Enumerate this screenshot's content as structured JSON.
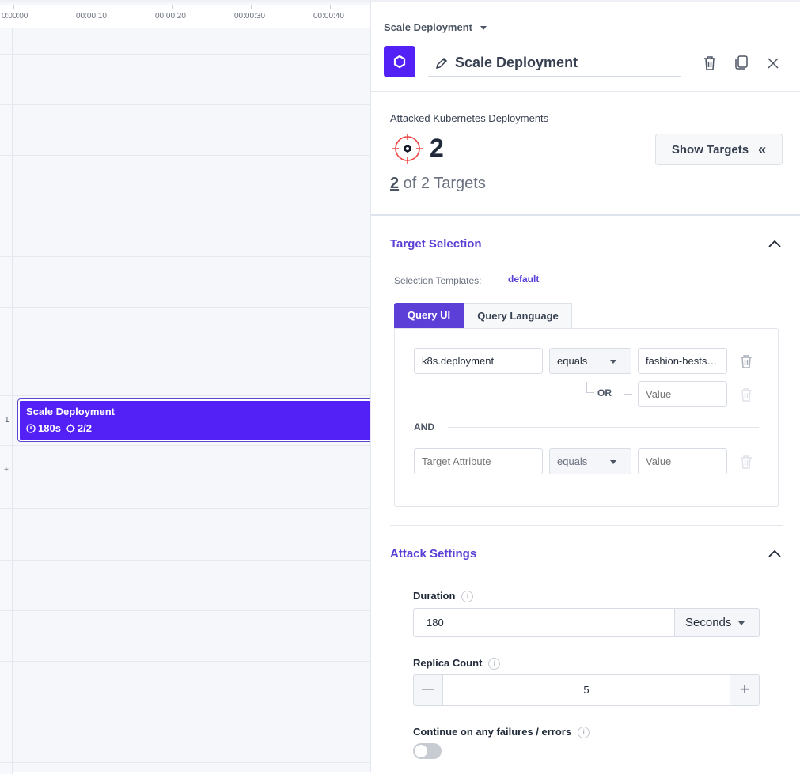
{
  "timeline": {
    "ticks": [
      "0:00:00",
      "00:00:10",
      "00:00:20",
      "00:00:30",
      "00:00:40"
    ],
    "row_numbers": [
      "1",
      "+"
    ],
    "step": {
      "title": "Scale Deployment",
      "duration": "180s",
      "targets": "2/2",
      "color": "#5321f5"
    }
  },
  "panel": {
    "breadcrumb": "Scale Deployment",
    "title": "Scale Deployment",
    "accent": "#5321f5",
    "targets": {
      "label": "Attacked Kubernetes Deployments",
      "count": "2",
      "selected": "2",
      "summary": " of 2 Targets",
      "show_button": "Show Targets"
    },
    "target_selection": {
      "heading": "Target Selection",
      "templates_label": "Selection Templates:",
      "templates_value": "default",
      "tabs": [
        {
          "label": "Query UI",
          "active": true
        },
        {
          "label": "Query Language",
          "active": false
        }
      ],
      "rows": [
        {
          "attribute": "k8s.deployment",
          "operator": "equals",
          "value": "fashion-bests…"
        },
        {
          "or_label": "OR",
          "value_placeholder": "Value"
        },
        {
          "attribute_placeholder": "Target Attribute",
          "operator": "equals",
          "value_placeholder": "Value"
        }
      ],
      "and_label": "AND"
    },
    "attack_settings": {
      "heading": "Attack Settings",
      "duration": {
        "label": "Duration",
        "value": "180",
        "unit": "Seconds"
      },
      "replica": {
        "label": "Replica Count",
        "value": "5",
        "minus": "—",
        "plus": "+"
      },
      "continue": {
        "label": "Continue on any failures / errors",
        "enabled": false
      }
    }
  }
}
